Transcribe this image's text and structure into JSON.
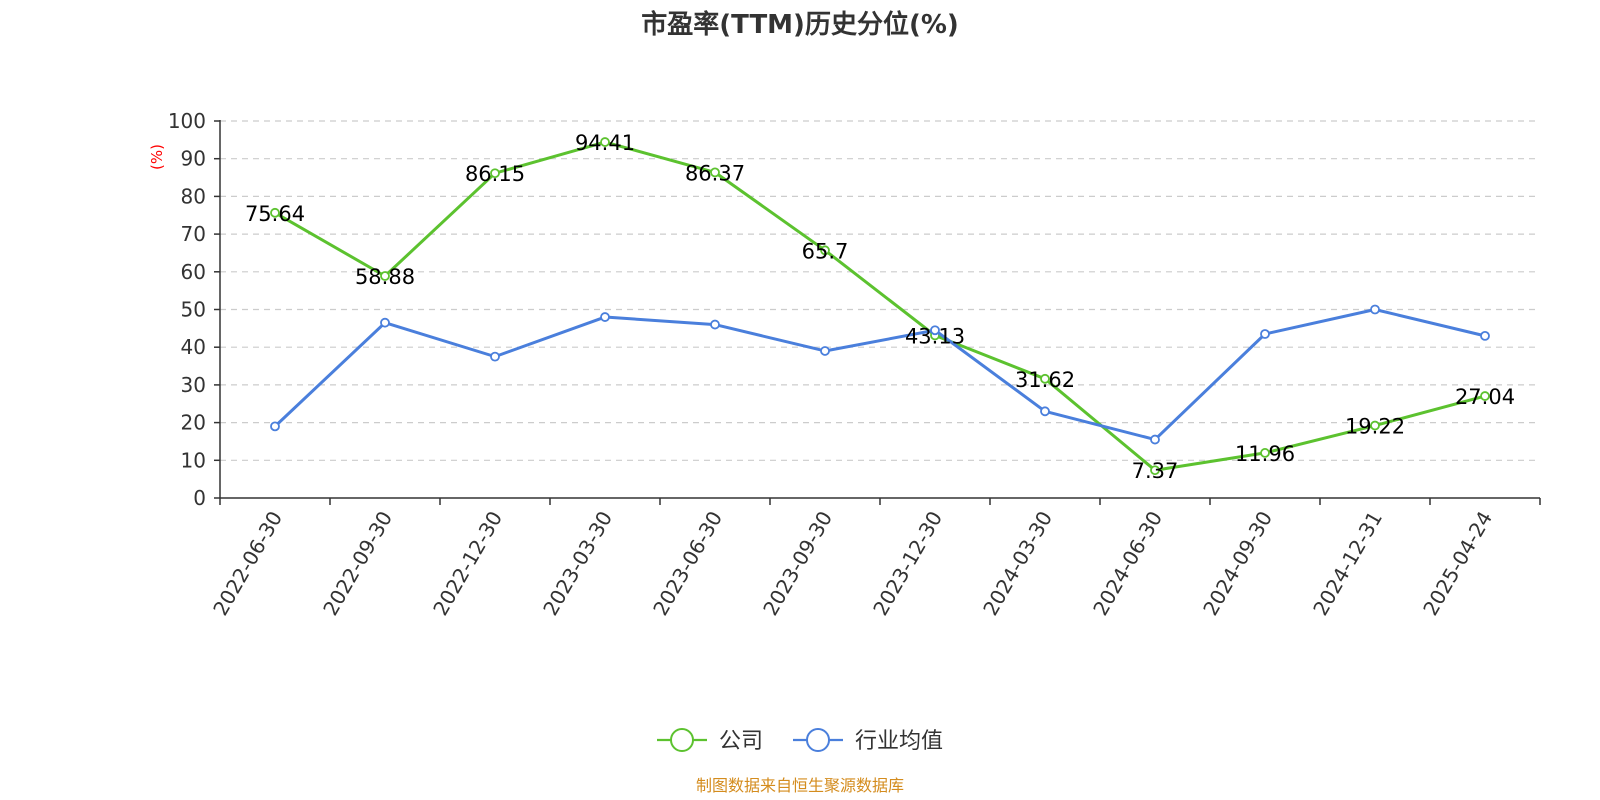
{
  "chart_data": {
    "type": "line",
    "title": "市盈率(TTM)历史分位(%)",
    "ylabel": "(%)",
    "xlabel": "",
    "ylim": [
      0,
      100
    ],
    "yticks": [
      0,
      10,
      20,
      30,
      40,
      50,
      60,
      70,
      80,
      90,
      100
    ],
    "grid": true,
    "legend": "bottom-center",
    "categories": [
      "2022-06-30",
      "2022-09-30",
      "2022-12-30",
      "2023-03-30",
      "2023-06-30",
      "2023-09-30",
      "2023-12-30",
      "2024-03-30",
      "2024-06-30",
      "2024-09-30",
      "2024-12-31",
      "2025-04-24"
    ],
    "series": [
      {
        "name": "公司",
        "color": "#5cc22f",
        "values": [
          75.64,
          58.88,
          86.15,
          94.41,
          86.37,
          65.7,
          43.13,
          31.62,
          7.37,
          11.96,
          19.22,
          27.04
        ],
        "labels": [
          "75.64",
          "58.88",
          "86.15",
          "94.41",
          "86.37",
          "65.7",
          "43.13",
          "31.62",
          "7.37",
          "11.96",
          "19.22",
          "27.04"
        ]
      },
      {
        "name": "行业均值",
        "color": "#4a7fdc",
        "values": [
          19,
          46.5,
          37.5,
          48,
          46,
          39,
          44.5,
          23,
          15.5,
          43.5,
          50,
          43
        ]
      }
    ],
    "source": "制图数据来自恒生聚源数据库",
    "ylabel_color": "#ff0000",
    "source_color": "#d48c1e"
  }
}
